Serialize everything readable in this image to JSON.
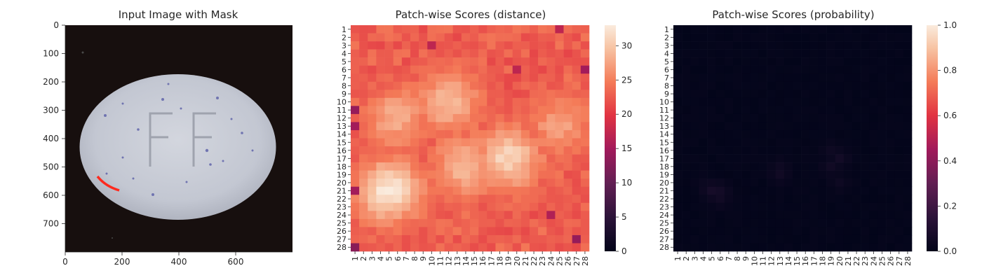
{
  "chart_data": [
    {
      "type": "image",
      "title": "Input Image with Mask",
      "xticks": [
        0,
        200,
        400,
        600
      ],
      "yticks": [
        0,
        100,
        200,
        300,
        400,
        500,
        600,
        700
      ],
      "xlim": [
        0,
        800
      ],
      "ylim": [
        800,
        0
      ],
      "image": {
        "background": "#170f0e",
        "object": "white oval pill with embossed letters FF and blue speckles",
        "embossed_text": "FF",
        "mask_color": "#ff2a1e"
      }
    },
    {
      "type": "heatmap",
      "title": "Patch-wise Scores (distance)",
      "rows": [
        "1",
        "2",
        "3",
        "4",
        "5",
        "6",
        "7",
        "8",
        "9",
        "10",
        "11",
        "12",
        "13",
        "14",
        "15",
        "16",
        "17",
        "18",
        "19",
        "20",
        "21",
        "22",
        "23",
        "24",
        "25",
        "26",
        "27",
        "28"
      ],
      "cols": [
        "1",
        "2",
        "3",
        "4",
        "5",
        "6",
        "7",
        "8",
        "9",
        "10",
        "11",
        "12",
        "13",
        "14",
        "15",
        "16",
        "17",
        "18",
        "19",
        "20",
        "21",
        "22",
        "23",
        "24",
        "25",
        "26",
        "27",
        "28"
      ],
      "value_range": [
        0,
        33
      ],
      "colorbar_ticks": [
        0,
        5,
        10,
        15,
        20,
        25,
        30
      ],
      "colormap": "rocket",
      "baseline": 22,
      "hotspots": [
        {
          "row": 21,
          "col": 5,
          "value": 33
        },
        {
          "row": 17,
          "col": 19,
          "value": 31
        },
        {
          "row": 10,
          "col": 12,
          "value": 29
        },
        {
          "row": 12,
          "col": 6,
          "value": 28
        },
        {
          "row": 18,
          "col": 14,
          "value": 29
        },
        {
          "row": 13,
          "col": 25,
          "value": 27
        }
      ],
      "low_spots": [
        {
          "row": 28,
          "col": 1,
          "value": 13
        },
        {
          "row": 11,
          "col": 1,
          "value": 14
        },
        {
          "row": 13,
          "col": 1,
          "value": 15
        },
        {
          "row": 21,
          "col": 1,
          "value": 15
        },
        {
          "row": 6,
          "col": 20,
          "value": 17
        },
        {
          "row": 3,
          "col": 10,
          "value": 17
        },
        {
          "row": 27,
          "col": 27,
          "value": 14
        },
        {
          "row": 6,
          "col": 28,
          "value": 15
        },
        {
          "row": 24,
          "col": 24,
          "value": 16
        },
        {
          "row": 1,
          "col": 25,
          "value": 17
        }
      ]
    },
    {
      "type": "heatmap",
      "title": "Patch-wise Scores (probability)",
      "rows": [
        "1",
        "2",
        "3",
        "4",
        "5",
        "6",
        "7",
        "8",
        "9",
        "10",
        "11",
        "12",
        "13",
        "14",
        "15",
        "16",
        "17",
        "18",
        "19",
        "20",
        "21",
        "22",
        "23",
        "24",
        "25",
        "26",
        "27",
        "28"
      ],
      "cols": [
        "1",
        "2",
        "3",
        "4",
        "5",
        "6",
        "7",
        "8",
        "9",
        "10",
        "11",
        "12",
        "13",
        "14",
        "15",
        "16",
        "17",
        "18",
        "19",
        "20",
        "21",
        "22",
        "23",
        "24",
        "25",
        "26",
        "27",
        "28"
      ],
      "value_range": [
        0,
        1
      ],
      "colorbar_ticks": [
        "0.0",
        "0.2",
        "0.4",
        "0.6",
        "0.8",
        "1.0"
      ],
      "colormap": "rocket",
      "baseline": 0.0,
      "hotspots": [
        {
          "row": 21,
          "col": 5,
          "value": 0.07
        },
        {
          "row": 21,
          "col": 6,
          "value": 0.06
        },
        {
          "row": 22,
          "col": 6,
          "value": 0.05
        },
        {
          "row": 17,
          "col": 20,
          "value": 0.06
        },
        {
          "row": 18,
          "col": 19,
          "value": 0.05
        },
        {
          "row": 19,
          "col": 13,
          "value": 0.05
        },
        {
          "row": 16,
          "col": 19,
          "value": 0.04
        },
        {
          "row": 20,
          "col": 20,
          "value": 0.04
        },
        {
          "row": 18,
          "col": 13,
          "value": 0.04
        },
        {
          "row": 20,
          "col": 4,
          "value": 0.03
        }
      ]
    }
  ]
}
